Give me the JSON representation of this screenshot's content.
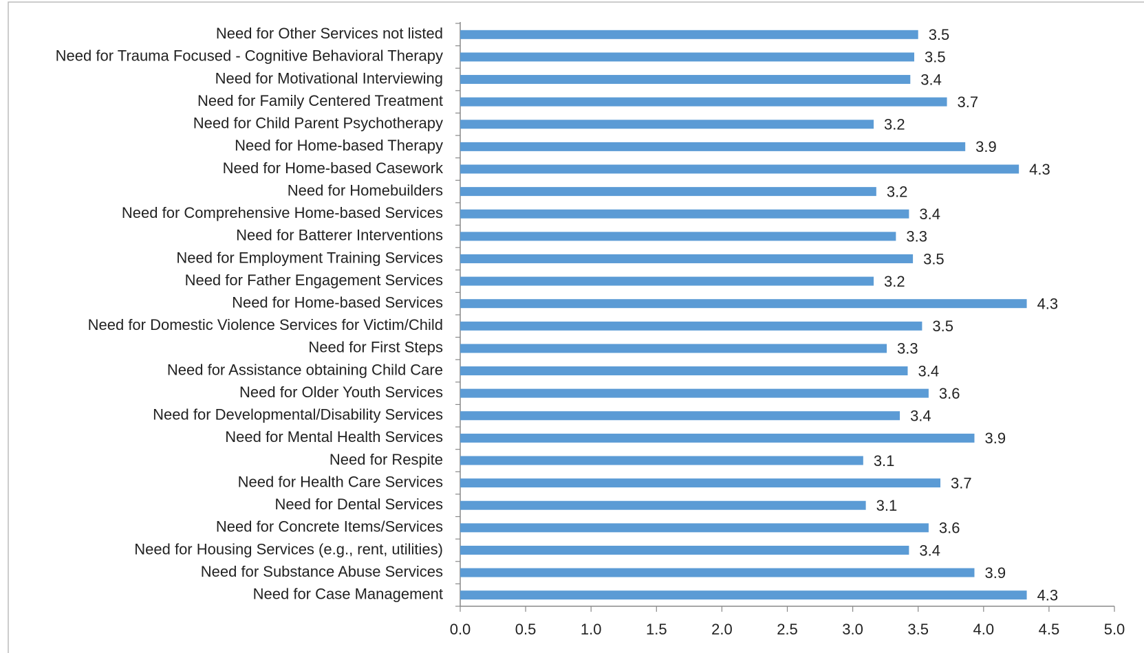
{
  "chart_data": {
    "type": "bar",
    "orientation": "horizontal",
    "color": "#5b9bd5",
    "categories": [
      "Need for Other Services not listed",
      "Need for Trauma Focused - Cognitive Behavioral Therapy",
      "Need for Motivational Interviewing",
      "Need for Family Centered Treatment",
      "Need for Child Parent Psychotherapy",
      "Need for Home-based Therapy",
      "Need for Home-based Casework",
      "Need for Homebuilders",
      "Need for Comprehensive Home-based Services",
      "Need for Batterer Interventions",
      "Need for Employment Training Services",
      "Need for Father Engagement Services",
      "Need for Home-based Services",
      "Need for Domestic Violence Services for Victim/Child",
      "Need for First Steps",
      "Need for Assistance obtaining Child Care",
      "Need for Older Youth Services",
      "Need for Developmental/Disability Services",
      "Need for Mental Health Services",
      "Need for Respite",
      "Need for Health Care Services",
      "Need for Dental Services",
      "Need for Concrete Items/Services",
      "Need for Housing Services (e.g., rent, utilities)",
      "Need for Substance Abuse Services",
      "Need for Case Management"
    ],
    "values": [
      3.5,
      3.47,
      3.44,
      3.72,
      3.16,
      3.86,
      4.27,
      3.18,
      3.43,
      3.33,
      3.46,
      3.16,
      4.33,
      3.53,
      3.26,
      3.42,
      3.58,
      3.36,
      3.93,
      3.08,
      3.67,
      3.1,
      3.58,
      3.43,
      3.93,
      4.33
    ],
    "value_labels": [
      "3.5",
      "3.5",
      "3.4",
      "3.7",
      "3.2",
      "3.9",
      "4.3",
      "3.2",
      "3.4",
      "3.3",
      "3.5",
      "3.2",
      "4.3",
      "3.5",
      "3.3",
      "3.4",
      "3.6",
      "3.4",
      "3.9",
      "3.1",
      "3.7",
      "3.1",
      "3.6",
      "3.4",
      "3.9",
      "4.3"
    ],
    "xlim": [
      0,
      5
    ],
    "xticks": [
      {
        "value": 0,
        "label": "0.0"
      },
      0.5,
      {
        "value": 1,
        "label": "1.0"
      },
      1.5,
      {
        "value": 2,
        "label": "2.0"
      },
      2.5,
      {
        "value": 3,
        "label": "3.0"
      },
      3.5,
      {
        "value": 4,
        "label": "4.0"
      },
      4.5,
      {
        "value": 5,
        "label": "5.0"
      }
    ]
  }
}
